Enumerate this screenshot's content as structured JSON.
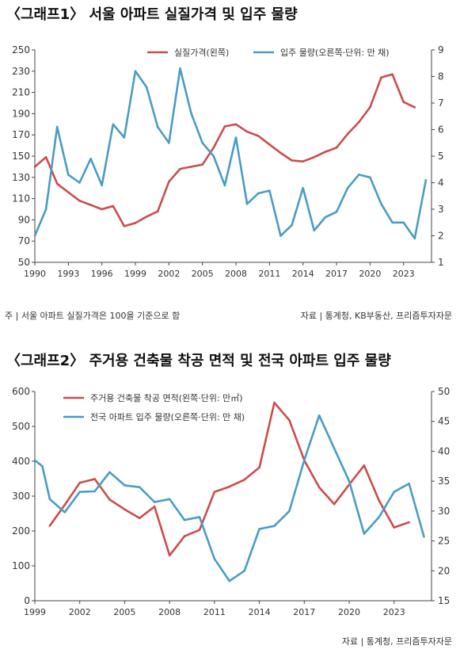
{
  "graph1": {
    "title": "〈그래프1〉 서울 아파트 실질가격 및 입주 물량",
    "note_left": "주 | 서울 아파트 실질가격은 100을 기준으로 함",
    "note_right": "자료 | 통계청, KB부동산, 프리즘투자자문"
  },
  "graph2": {
    "title": "〈그래프2〉 주거용 건축물 착공 면적 및 전국 아파트 입주 물량",
    "note_right": "자료 | 통계청, 프리즘투자자문"
  },
  "chart_data": [
    {
      "type": "line",
      "title": "〈그래프1〉 서울 아파트 실질가격 및 입주 물량",
      "x_ticks": [
        1990,
        1993,
        1996,
        1999,
        2002,
        2005,
        2008,
        2011,
        2014,
        2017,
        2020,
        2023
      ],
      "xlim": [
        1990,
        2025.5
      ],
      "ylim_left": [
        50,
        250
      ],
      "yticks_left": [
        50,
        70,
        90,
        110,
        130,
        150,
        170,
        190,
        210,
        230,
        250
      ],
      "ylim_right": [
        1,
        9
      ],
      "yticks_right": [
        1,
        2,
        3,
        4,
        5,
        6,
        7,
        8,
        9
      ],
      "legend_position": "top",
      "series": [
        {
          "name": "실질가격(왼쪽)",
          "axis": "left",
          "color": "#cc4c4c",
          "x": [
            1990,
            1991,
            1992,
            1993,
            1994,
            1995,
            1996,
            1997,
            1998,
            1999,
            2000,
            2001,
            2002,
            2003,
            2004,
            2005,
            2006,
            2007,
            2008,
            2009,
            2010,
            2011,
            2012,
            2013,
            2014,
            2015,
            2016,
            2017,
            2018,
            2019,
            2020,
            2021,
            2022,
            2023,
            2024
          ],
          "y": [
            140,
            149,
            124,
            116,
            108,
            104,
            100,
            103,
            84,
            87,
            93,
            98,
            126,
            138,
            140,
            142,
            158,
            178,
            180,
            173,
            169,
            161,
            153,
            146,
            145,
            149,
            154,
            158,
            171,
            182,
            196,
            224,
            227,
            201,
            196
          ]
        },
        {
          "name": "입주 물량(오른쪽·단위: 만 채)",
          "axis": "right",
          "color": "#4a9cc4",
          "x": [
            1990,
            1991,
            1992,
            1993,
            1994,
            1995,
            1996,
            1997,
            1998,
            1999,
            2000,
            2001,
            2002,
            2003,
            2004,
            2005,
            2006,
            2007,
            2008,
            2009,
            2010,
            2011,
            2012,
            2013,
            2014,
            2015,
            2016,
            2017,
            2018,
            2019,
            2020,
            2021,
            2022,
            2023,
            2024,
            2025
          ],
          "y": [
            2.0,
            3.0,
            6.1,
            4.3,
            4.0,
            4.9,
            3.9,
            6.2,
            5.7,
            8.2,
            7.6,
            6.1,
            5.5,
            8.3,
            6.6,
            5.5,
            5.0,
            3.9,
            5.7,
            3.2,
            3.6,
            3.7,
            2.0,
            2.4,
            3.8,
            2.2,
            2.7,
            2.9,
            3.8,
            4.3,
            4.2,
            3.2,
            2.5,
            2.5,
            1.9,
            4.1
          ]
        }
      ]
    },
    {
      "type": "line",
      "title": "〈그래프2〉 주거용 건축물 착공 면적 및 전국 아파트 입주 물량",
      "x_ticks": [
        1999,
        2002,
        2005,
        2008,
        2011,
        2014,
        2017,
        2020,
        2023
      ],
      "xlim": [
        1999,
        2025.5
      ],
      "ylim_left": [
        0,
        600
      ],
      "yticks_left": [
        0,
        100,
        200,
        300,
        400,
        500,
        600
      ],
      "ylim_right": [
        15,
        50
      ],
      "yticks_right": [
        15,
        20,
        25,
        30,
        35,
        40,
        45,
        50
      ],
      "legend_position": "top-left",
      "series": [
        {
          "name": "주거용 건축물 착공 면적(왼쪽·단위: 만㎡)",
          "axis": "left",
          "color": "#cc4c4c",
          "x": [
            2000,
            2001,
            2002,
            2003,
            2004,
            2005,
            2006,
            2007,
            2008,
            2009,
            2010,
            2011,
            2012,
            2013,
            2014,
            2015,
            2016,
            2017,
            2018,
            2019,
            2020,
            2021,
            2022,
            2023,
            2024
          ],
          "y": [
            215,
            275,
            338,
            349,
            290,
            262,
            237,
            270,
            130,
            185,
            203,
            312,
            327,
            347,
            382,
            568,
            518,
            403,
            325,
            277,
            333,
            388,
            287,
            210,
            225
          ]
        },
        {
          "name": "전국 아파트 입주 물량(오른쪽·단위: 만 채)",
          "axis": "right",
          "color": "#4a9cc4",
          "x": [
            1999,
            1999.5,
            2000,
            2001,
            2002,
            2003,
            2004,
            2005,
            2006,
            2007,
            2008,
            2009,
            2010,
            2011,
            2012,
            2013,
            2014,
            2015,
            2016,
            2017,
            2018,
            2019,
            2020,
            2021,
            2022,
            2023,
            2024,
            2025
          ],
          "y": [
            38.5,
            37.5,
            32.0,
            29.8,
            33.2,
            33.3,
            36.5,
            34.3,
            34.0,
            31.5,
            32.0,
            28.5,
            29.0,
            22.0,
            18.3,
            20.0,
            27.0,
            27.5,
            30.0,
            38.5,
            46.0,
            40.5,
            35.0,
            26.2,
            29.0,
            33.2,
            34.6,
            25.7
          ]
        }
      ]
    }
  ]
}
